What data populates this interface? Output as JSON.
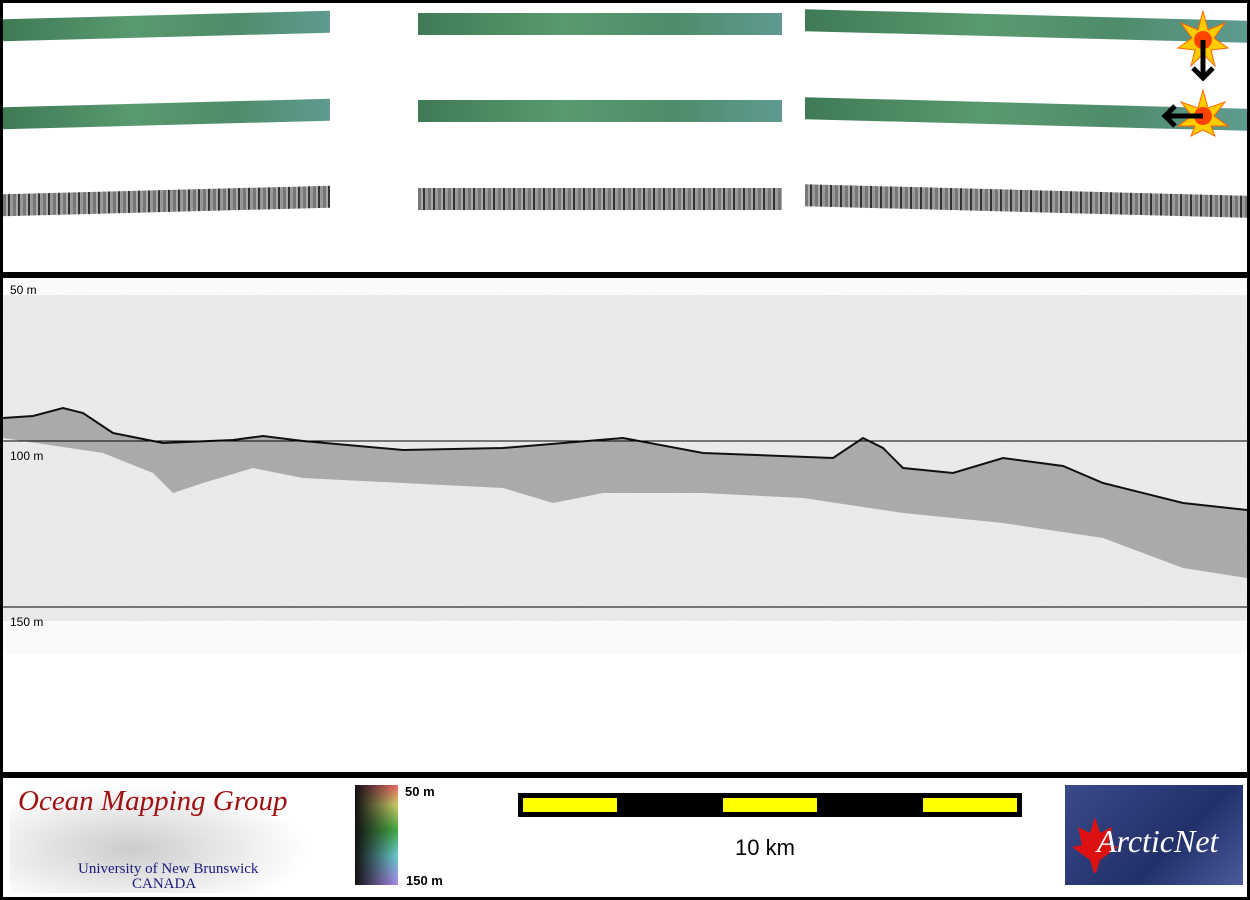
{
  "profile": {
    "depth_labels": [
      "50 m",
      "100 m",
      "150 m"
    ]
  },
  "legend": {
    "logo_omg": {
      "title": "Ocean Mapping Group",
      "line1": "University of New Brunswick",
      "line2": "CANADA"
    },
    "colorbar": {
      "top_label": "50 m",
      "bottom_label": "150 m"
    },
    "scale_bar": {
      "label": "10 km"
    },
    "logo_arcticnet": {
      "text": "ArcticNet"
    }
  },
  "colors": {
    "swath_green": "#4f8c6a",
    "scale_yellow": "#ffff00",
    "arctic_blue": "#2a3a7a"
  },
  "icons": [
    "sun-marker-icon",
    "arrow-down-icon",
    "arrow-left-icon"
  ]
}
